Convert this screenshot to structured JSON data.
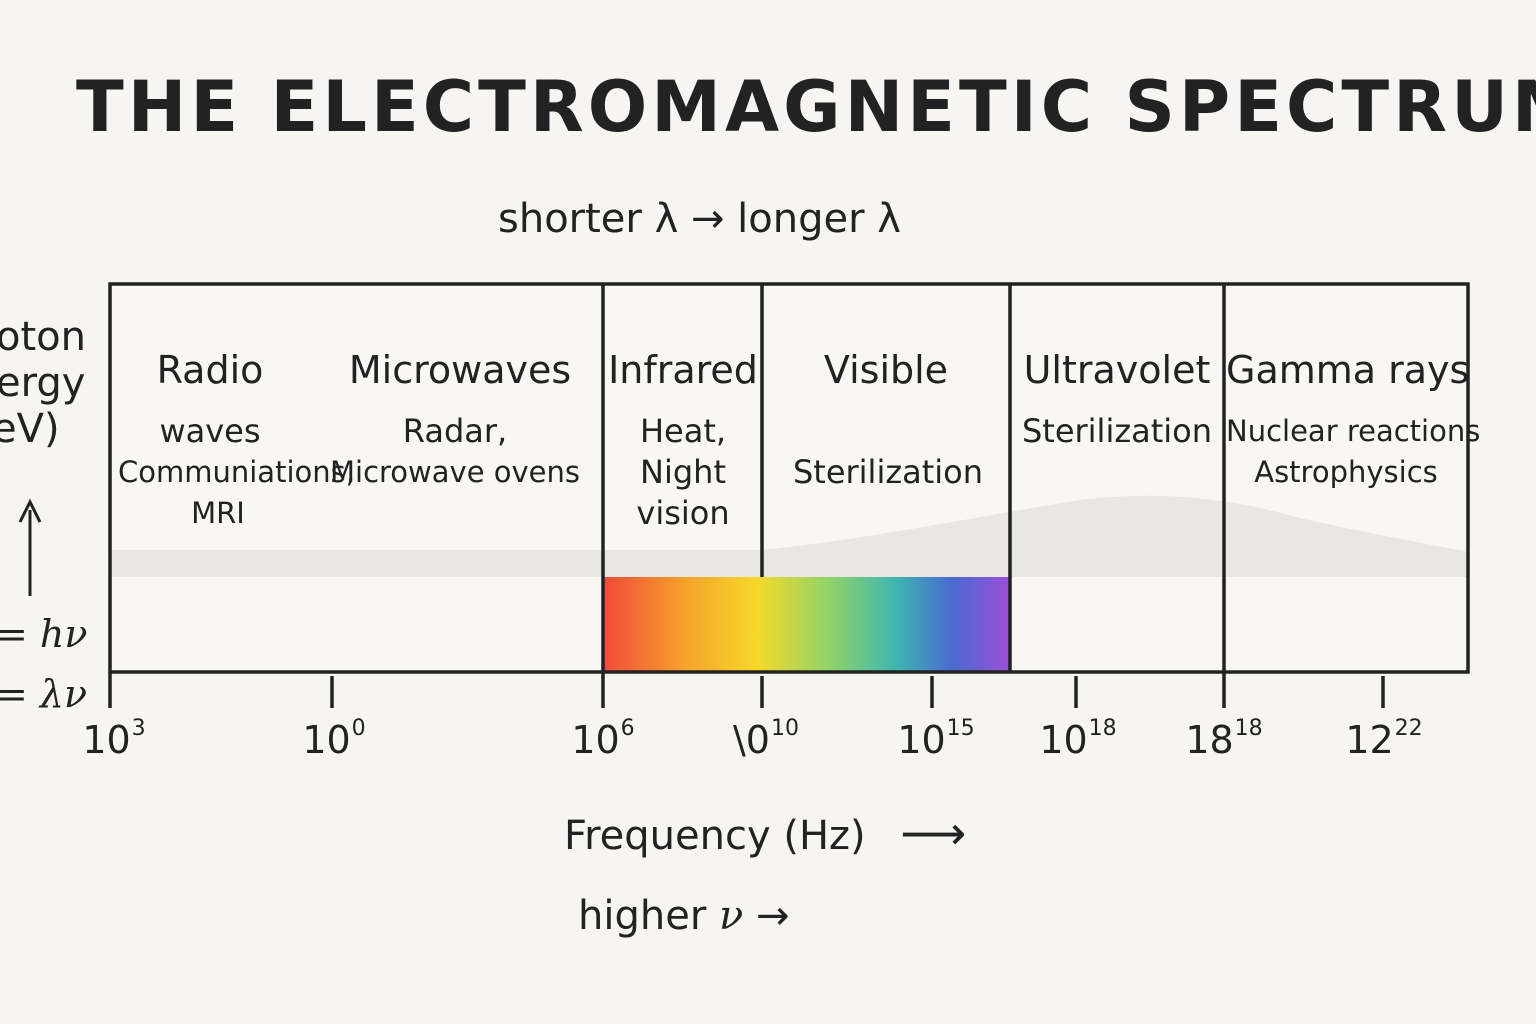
{
  "title": "THE ELECTROMAGNETIC SPECTRUM",
  "wavelength_caption": "shorter λ →  longer λ",
  "side_label": {
    "line1": "oton",
    "line2": "ergy",
    "line3": "eV)",
    "eq1": "= hν",
    "eq2": "= λν"
  },
  "bands": [
    {
      "name": "Radio",
      "desc": [
        "waves",
        "Communiations,",
        "MRI"
      ]
    },
    {
      "name": "Microwaves",
      "desc": [
        "Radar,",
        "Microwave ovens"
      ]
    },
    {
      "name": "Infrared",
      "desc": [
        "Heat,",
        "Night",
        "vision"
      ]
    },
    {
      "name": "Visible",
      "desc": [
        "Sterilization"
      ]
    },
    {
      "name": "Ultravolet",
      "desc": [
        "Sterilization"
      ]
    },
    {
      "name": "Gamma rays",
      "desc": [
        "Nuclear reactions",
        "Astrophysics"
      ]
    }
  ],
  "ticks": [
    {
      "base": "10",
      "exp": "3"
    },
    {
      "base": "10",
      "exp": "0"
    },
    {
      "base": "10",
      "exp": "6"
    },
    {
      "base": "\\0",
      "exp": "10"
    },
    {
      "base": "10",
      "exp": "15"
    },
    {
      "base": "10",
      "exp": "18"
    },
    {
      "base": "18",
      "exp": "18"
    },
    {
      "base": "12",
      "exp": "22"
    }
  ],
  "frequency_caption": "Frequency (Hz)",
  "frequency_arrow": "⟶",
  "nu_caption_text": "higher",
  "nu_caption_symbol": "ν",
  "nu_caption_arrow": "→",
  "colors": {
    "background": "#f7f5f1",
    "frame": "#222222",
    "shade": "#e9e7e3",
    "visible_gradient": [
      "#f04a3a",
      "#f7a22c",
      "#f5d92a",
      "#8fd36a",
      "#3fb6b0",
      "#4a6ad0",
      "#9a4fd8"
    ]
  }
}
